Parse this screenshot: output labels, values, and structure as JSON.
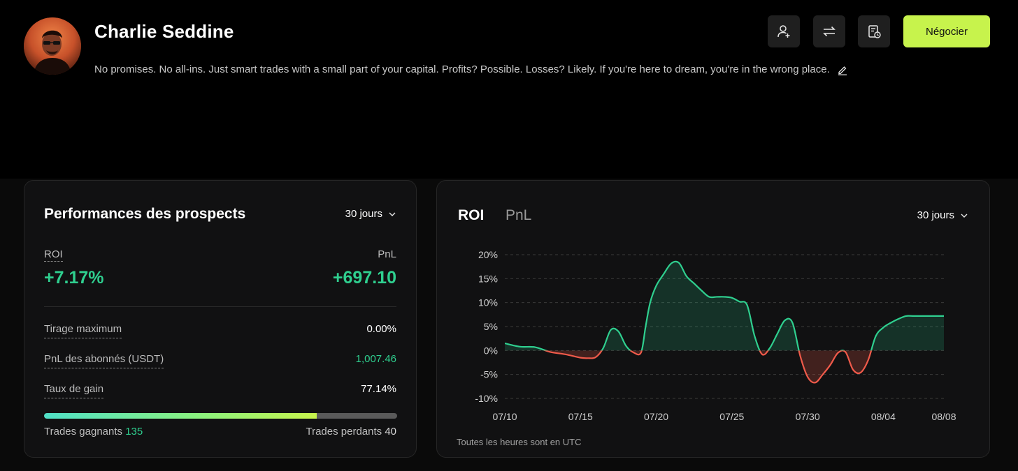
{
  "profile": {
    "name": "Charlie Seddine",
    "bio": "No promises. No all-ins. Just smart trades with a small part of your capital. Profits? Possible. Losses? Likely. If you're here to dream, you're in the wrong place."
  },
  "actions": {
    "icons": [
      "add-user-icon",
      "swap-icon",
      "report-icon",
      "edit-icon"
    ],
    "trade_label": "Négocier",
    "accent": "#c7f34c"
  },
  "performance": {
    "title": "Performances des prospects",
    "period": "30 jours",
    "roi_label": "ROI",
    "roi_value": "+7.17%",
    "pnl_label": "PnL",
    "pnl_value": "+697.10",
    "rows": [
      {
        "label": "Tirage maximum",
        "value": "0.00%"
      },
      {
        "label": "PnL des abonnés (USDT)",
        "value": "1,007.46"
      },
      {
        "label": "Taux de gain",
        "value": "77.14%"
      }
    ],
    "win_label": "Trades gagnants",
    "win_count": "135",
    "loss_label": "Trades perdants",
    "loss_count": "40",
    "win_ratio": 0.7714,
    "positive_color": "#2fcf8f",
    "negative_color": "#ef5a4a"
  },
  "roi_chart": {
    "tab_roi": "ROI",
    "tab_pnl": "PnL",
    "period": "30 jours",
    "note": "Toutes les heures sont en UTC"
  },
  "chart_data": {
    "type": "area",
    "title": "",
    "xlabel": "",
    "ylabel": "",
    "x_ticks": [
      "07/10",
      "07/15",
      "07/20",
      "07/25",
      "07/30",
      "08/04",
      "08/08"
    ],
    "y_ticks": [
      "20%",
      "15%",
      "10%",
      "5%",
      "0%",
      "-5%",
      "-10%"
    ],
    "ylim": [
      -10,
      20
    ],
    "grid": true,
    "x_start": "07/10",
    "series": [
      {
        "x": [
          0,
          1,
          2,
          3,
          4,
          5,
          5.5,
          6,
          6.5,
          7,
          7.5,
          8,
          8.5,
          9,
          9.3,
          9.6,
          10,
          10.5,
          11,
          11.5,
          12,
          12.5,
          13,
          13.5,
          14,
          14.5,
          15,
          15.5,
          16,
          16.5,
          17,
          17.5,
          18,
          18.5,
          19,
          19.5,
          20,
          20.5,
          21,
          21.5,
          22,
          22.5,
          23,
          23.5,
          24,
          24.5,
          25,
          25.5,
          26,
          26.5,
          27,
          27.5,
          28,
          28.5,
          29
        ],
        "values": [
          1.5,
          0.8,
          0.7,
          -0.3,
          -0.8,
          -1.5,
          -1.6,
          -1.4,
          0.5,
          4.3,
          4.0,
          1.0,
          -0.4,
          -0.4,
          5.0,
          10.0,
          13.5,
          16.0,
          18.2,
          18.3,
          15.5,
          14.0,
          12.5,
          11.2,
          11.2,
          11.2,
          11.0,
          10.2,
          9.5,
          3.0,
          -0.8,
          0.5,
          3.5,
          6.3,
          5.8,
          -1.0,
          -5.5,
          -6.7,
          -5.0,
          -3.0,
          -0.5,
          -0.3,
          -4.0,
          -4.6,
          -2.0,
          3.0,
          4.8,
          5.8,
          6.6,
          7.2,
          7.2,
          7.2,
          7.2,
          7.2,
          7.2
        ]
      }
    ]
  }
}
